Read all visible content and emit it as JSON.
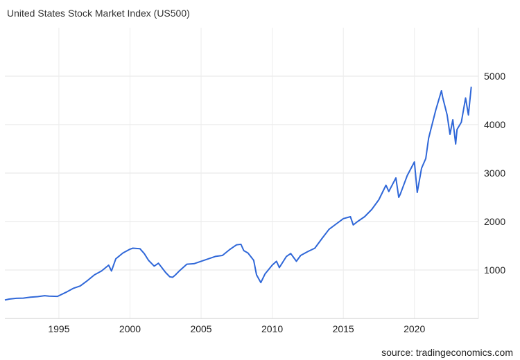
{
  "header": {
    "title": "United States Stock Market Index (US500)"
  },
  "footer": {
    "source": "source: tradingeconomics.com"
  },
  "chart_data": {
    "type": "line",
    "title": "United States Stock Market Index (US500)",
    "xlabel": "",
    "ylabel": "",
    "x_ticks": [
      1995,
      2000,
      2005,
      2010,
      2015,
      2020
    ],
    "y_ticks": [
      1000,
      2000,
      3000,
      4000,
      5000
    ],
    "xlim": [
      1991.2,
      2024.5
    ],
    "ylim": [
      0,
      6000
    ],
    "grid": true,
    "y_axis_position": "right",
    "series": [
      {
        "color": "#2f67d8",
        "x": [
          1991.2,
          1991.5,
          1992.0,
          1992.5,
          1993.0,
          1993.5,
          1994.0,
          1994.3,
          1994.9,
          1995.5,
          1996.0,
          1996.5,
          1997.0,
          1997.5,
          1998.0,
          1998.5,
          1998.7,
          1999.0,
          1999.5,
          2000.0,
          2000.2,
          2000.7,
          2001.0,
          2001.3,
          2001.7,
          2002.0,
          2002.5,
          2002.8,
          2003.0,
          2003.2,
          2003.5,
          2004.0,
          2004.5,
          2005.0,
          2005.5,
          2006.0,
          2006.5,
          2007.0,
          2007.5,
          2007.8,
          2008.0,
          2008.3,
          2008.7,
          2008.9,
          2009.2,
          2009.5,
          2010.0,
          2010.3,
          2010.5,
          2011.0,
          2011.3,
          2011.7,
          2012.0,
          2012.5,
          2013.0,
          2013.5,
          2014.0,
          2014.5,
          2015.0,
          2015.5,
          2015.7,
          2016.0,
          2016.5,
          2017.0,
          2017.5,
          2018.0,
          2018.2,
          2018.7,
          2018.9,
          2019.0,
          2019.5,
          2020.0,
          2020.2,
          2020.5,
          2020.8,
          2021.0,
          2021.5,
          2021.9,
          2022.0,
          2022.3,
          2022.5,
          2022.7,
          2022.9,
          2023.0,
          2023.3,
          2023.6,
          2023.8,
          2024.0
        ],
        "values": [
          380,
          400,
          415,
          420,
          440,
          450,
          470,
          460,
          455,
          540,
          620,
          670,
          780,
          900,
          980,
          1100,
          980,
          1230,
          1350,
          1430,
          1450,
          1440,
          1340,
          1200,
          1080,
          1140,
          950,
          860,
          850,
          900,
          990,
          1120,
          1130,
          1180,
          1230,
          1280,
          1300,
          1420,
          1520,
          1530,
          1400,
          1350,
          1200,
          900,
          740,
          920,
          1100,
          1180,
          1050,
          1280,
          1340,
          1180,
          1300,
          1380,
          1450,
          1650,
          1840,
          1950,
          2060,
          2100,
          1930,
          2000,
          2100,
          2250,
          2450,
          2750,
          2620,
          2900,
          2500,
          2560,
          2950,
          3230,
          2600,
          3100,
          3300,
          3720,
          4300,
          4700,
          4550,
          4200,
          3800,
          4100,
          3600,
          3900,
          4050,
          4550,
          4200,
          4780
        ]
      }
    ]
  }
}
